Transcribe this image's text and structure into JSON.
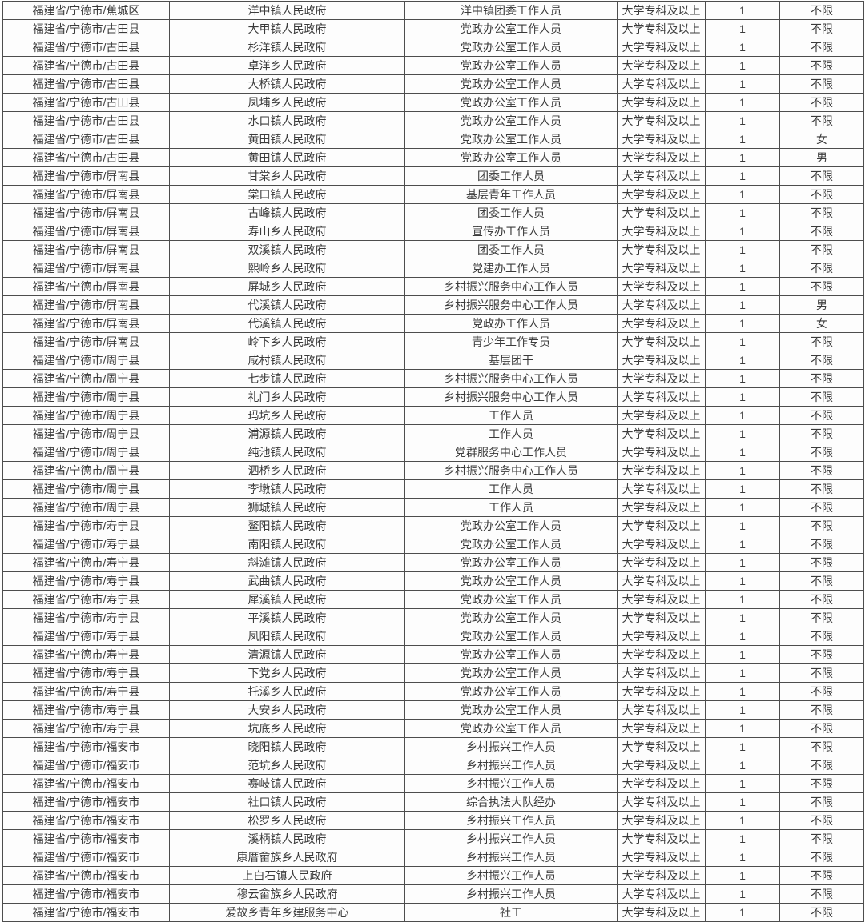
{
  "table": {
    "column_keys": [
      "region",
      "employer",
      "position",
      "education",
      "headcount",
      "gender"
    ],
    "rows": [
      [
        "福建省/宁德市/蕉城区",
        "洋中镇人民政府",
        "洋中镇团委工作人员",
        "大学专科及以上",
        "1",
        "不限"
      ],
      [
        "福建省/宁德市/古田县",
        "大甲镇人民政府",
        "党政办公室工作人员",
        "大学专科及以上",
        "1",
        "不限"
      ],
      [
        "福建省/宁德市/古田县",
        "杉洋镇人民政府",
        "党政办公室工作人员",
        "大学专科及以上",
        "1",
        "不限"
      ],
      [
        "福建省/宁德市/古田县",
        "卓洋乡人民政府",
        "党政办公室工作人员",
        "大学专科及以上",
        "1",
        "不限"
      ],
      [
        "福建省/宁德市/古田县",
        "大桥镇人民政府",
        "党政办公室工作人员",
        "大学专科及以上",
        "1",
        "不限"
      ],
      [
        "福建省/宁德市/古田县",
        "凤埔乡人民政府",
        "党政办公室工作人员",
        "大学专科及以上",
        "1",
        "不限"
      ],
      [
        "福建省/宁德市/古田县",
        "水口镇人民政府",
        "党政办公室工作人员",
        "大学专科及以上",
        "1",
        "不限"
      ],
      [
        "福建省/宁德市/古田县",
        "黄田镇人民政府",
        "党政办公室工作人员",
        "大学专科及以上",
        "1",
        "女"
      ],
      [
        "福建省/宁德市/古田县",
        "黄田镇人民政府",
        "党政办公室工作人员",
        "大学专科及以上",
        "1",
        "男"
      ],
      [
        "福建省/宁德市/屏南县",
        "甘棠乡人民政府",
        "团委工作人员",
        "大学专科及以上",
        "1",
        "不限"
      ],
      [
        "福建省/宁德市/屏南县",
        "棠口镇人民政府",
        "基层青年工作人员",
        "大学专科及以上",
        "1",
        "不限"
      ],
      [
        "福建省/宁德市/屏南县",
        "古峰镇人民政府",
        "团委工作人员",
        "大学专科及以上",
        "1",
        "不限"
      ],
      [
        "福建省/宁德市/屏南县",
        "寿山乡人民政府",
        "宣传办工作人员",
        "大学专科及以上",
        "1",
        "不限"
      ],
      [
        "福建省/宁德市/屏南县",
        "双溪镇人民政府",
        "团委工作人员",
        "大学专科及以上",
        "1",
        "不限"
      ],
      [
        "福建省/宁德市/屏南县",
        "熙岭乡人民政府",
        "党建办工作人员",
        "大学专科及以上",
        "1",
        "不限"
      ],
      [
        "福建省/宁德市/屏南县",
        "屏城乡人民政府",
        "乡村振兴服务中心工作人员",
        "大学专科及以上",
        "1",
        "不限"
      ],
      [
        "福建省/宁德市/屏南县",
        "代溪镇人民政府",
        "乡村振兴服务中心工作人员",
        "大学专科及以上",
        "1",
        "男"
      ],
      [
        "福建省/宁德市/屏南县",
        "代溪镇人民政府",
        "党政办工作人员",
        "大学专科及以上",
        "1",
        "女"
      ],
      [
        "福建省/宁德市/屏南县",
        "岭下乡人民政府",
        "青少年工作专员",
        "大学专科及以上",
        "1",
        "不限"
      ],
      [
        "福建省/宁德市/周宁县",
        "咸村镇人民政府",
        "基层团干",
        "大学专科及以上",
        "1",
        "不限"
      ],
      [
        "福建省/宁德市/周宁县",
        "七步镇人民政府",
        "乡村振兴服务中心工作人员",
        "大学专科及以上",
        "1",
        "不限"
      ],
      [
        "福建省/宁德市/周宁县",
        "礼门乡人民政府",
        "乡村振兴服务中心工作人员",
        "大学专科及以上",
        "1",
        "不限"
      ],
      [
        "福建省/宁德市/周宁县",
        "玛坑乡人民政府",
        "工作人员",
        "大学专科及以上",
        "1",
        "不限"
      ],
      [
        "福建省/宁德市/周宁县",
        "浦源镇人民政府",
        "工作人员",
        "大学专科及以上",
        "1",
        "不限"
      ],
      [
        "福建省/宁德市/周宁县",
        "纯池镇人民政府",
        "党群服务中心工作人员",
        "大学专科及以上",
        "1",
        "不限"
      ],
      [
        "福建省/宁德市/周宁县",
        "泗桥乡人民政府",
        "乡村振兴服务中心工作人员",
        "大学专科及以上",
        "1",
        "不限"
      ],
      [
        "福建省/宁德市/周宁县",
        "李墩镇人民政府",
        "工作人员",
        "大学专科及以上",
        "1",
        "不限"
      ],
      [
        "福建省/宁德市/周宁县",
        "狮城镇人民政府",
        "工作人员",
        "大学专科及以上",
        "1",
        "不限"
      ],
      [
        "福建省/宁德市/寿宁县",
        "鳌阳镇人民政府",
        "党政办公室工作人员",
        "大学专科及以上",
        "1",
        "不限"
      ],
      [
        "福建省/宁德市/寿宁县",
        "南阳镇人民政府",
        "党政办公室工作人员",
        "大学专科及以上",
        "1",
        "不限"
      ],
      [
        "福建省/宁德市/寿宁县",
        "斜滩镇人民政府",
        "党政办公室工作人员",
        "大学专科及以上",
        "1",
        "不限"
      ],
      [
        "福建省/宁德市/寿宁县",
        "武曲镇人民政府",
        "党政办公室工作人员",
        "大学专科及以上",
        "1",
        "不限"
      ],
      [
        "福建省/宁德市/寿宁县",
        "犀溪镇人民政府",
        "党政办公室工作人员",
        "大学专科及以上",
        "1",
        "不限"
      ],
      [
        "福建省/宁德市/寿宁县",
        "平溪镇人民政府",
        "党政办公室工作人员",
        "大学专科及以上",
        "1",
        "不限"
      ],
      [
        "福建省/宁德市/寿宁县",
        "凤阳镇人民政府",
        "党政办公室工作人员",
        "大学专科及以上",
        "1",
        "不限"
      ],
      [
        "福建省/宁德市/寿宁县",
        "清源镇人民政府",
        "党政办公室工作人员",
        "大学专科及以上",
        "1",
        "不限"
      ],
      [
        "福建省/宁德市/寿宁县",
        "下党乡人民政府",
        "党政办公室工作人员",
        "大学专科及以上",
        "1",
        "不限"
      ],
      [
        "福建省/宁德市/寿宁县",
        "托溪乡人民政府",
        "党政办公室工作人员",
        "大学专科及以上",
        "1",
        "不限"
      ],
      [
        "福建省/宁德市/寿宁县",
        "大安乡人民政府",
        "党政办公室工作人员",
        "大学专科及以上",
        "1",
        "不限"
      ],
      [
        "福建省/宁德市/寿宁县",
        "坑底乡人民政府",
        "党政办公室工作人员",
        "大学专科及以上",
        "1",
        "不限"
      ],
      [
        "福建省/宁德市/福安市",
        "晓阳镇人民政府",
        "乡村振兴工作人员",
        "大学专科及以上",
        "1",
        "不限"
      ],
      [
        "福建省/宁德市/福安市",
        "范坑乡人民政府",
        "乡村振兴工作人员",
        "大学专科及以上",
        "1",
        "不限"
      ],
      [
        "福建省/宁德市/福安市",
        "赛岐镇人民政府",
        "乡村振兴工作人员",
        "大学专科及以上",
        "1",
        "不限"
      ],
      [
        "福建省/宁德市/福安市",
        "社口镇人民政府",
        "综合执法大队经办",
        "大学专科及以上",
        "1",
        "不限"
      ],
      [
        "福建省/宁德市/福安市",
        "松罗乡人民政府",
        "乡村振兴工作人员",
        "大学专科及以上",
        "1",
        "不限"
      ],
      [
        "福建省/宁德市/福安市",
        "溪柄镇人民政府",
        "乡村振兴工作人员",
        "大学专科及以上",
        "1",
        "不限"
      ],
      [
        "福建省/宁德市/福安市",
        "康厝畲族乡人民政府",
        "乡村振兴工作人员",
        "大学专科及以上",
        "1",
        "不限"
      ],
      [
        "福建省/宁德市/福安市",
        "上白石镇人民政府",
        "乡村振兴工作人员",
        "大学专科及以上",
        "1",
        "不限"
      ],
      [
        "福建省/宁德市/福安市",
        "穆云畲族乡人民政府",
        "乡村振兴工作人员",
        "大学专科及以上",
        "1",
        "不限"
      ],
      [
        "福建省/宁德市/福安市",
        "爱故乡青年乡建服务中心",
        "社工",
        "大学专科及以上",
        "1",
        "不限"
      ]
    ],
    "colors": {
      "text": "#3b3b3b",
      "border": "#4d4d4d",
      "background": "#fdfdfd"
    }
  }
}
